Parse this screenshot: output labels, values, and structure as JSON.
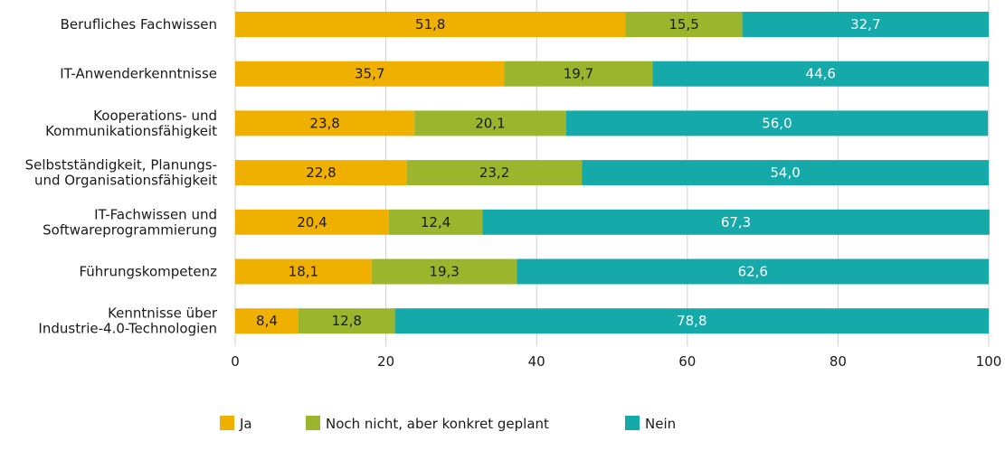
{
  "chart_data": {
    "type": "bar",
    "orientation": "horizontal",
    "stacked": true,
    "categories": [
      "Berufliches Fachwissen",
      "IT-Anwenderkenntnisse",
      "Kooperations- und Kommunikationsfähigkeit",
      "Selbstständigkeit, Planungs- und Organisationsfähigkeit",
      "IT-Fachwissen und Softwareprogrammierung",
      "Führungskompetenz",
      "Kenntnisse über Industrie-4.0-Technologien"
    ],
    "category_lines": [
      [
        "Berufliches Fachwissen"
      ],
      [
        "IT-Anwenderkenntnisse"
      ],
      [
        "Kooperations- und",
        "Kommunikationsfähigkeit"
      ],
      [
        "Selbstständigkeit, Planungs-",
        "und Organisationsfähigkeit"
      ],
      [
        "IT-Fachwissen und",
        "Softwareprogrammierung"
      ],
      [
        "Führungskompetenz"
      ],
      [
        "Kenntnisse über",
        "Industrie-4.0-Technologien"
      ]
    ],
    "series": [
      {
        "name": "Ja",
        "color": "#f0b000",
        "label_color": "#1a1a1a",
        "values": [
          51.8,
          35.7,
          23.8,
          22.8,
          20.4,
          18.1,
          8.4
        ],
        "labels": [
          "51,8",
          "35,7",
          "23,8",
          "22,8",
          "20,4",
          "18,1",
          "8,4"
        ]
      },
      {
        "name": "Noch nicht, aber konkret geplant",
        "color": "#9bb52d",
        "label_color": "#1a1a1a",
        "values": [
          15.5,
          19.7,
          20.1,
          23.2,
          12.4,
          19.3,
          12.8
        ],
        "labels": [
          "15,5",
          "19,7",
          "20,1",
          "23,2",
          "12,4",
          "19,3",
          "12,8"
        ]
      },
      {
        "name": "Nein",
        "color": "#16a9a9",
        "label_color": "#ffffff",
        "values": [
          32.7,
          44.6,
          56.0,
          54.0,
          67.3,
          62.6,
          78.8
        ],
        "labels": [
          "32,7",
          "44,6",
          "56,0",
          "54,0",
          "67,3",
          "62,6",
          "78,8"
        ]
      }
    ],
    "xlim": [
      0,
      100
    ],
    "x_ticks": [
      0,
      20,
      40,
      60,
      80,
      100
    ],
    "x_tick_labels": [
      "0",
      "20",
      "40",
      "60",
      "80",
      "100"
    ],
    "grid": true,
    "legend_position": "bottom",
    "title": "",
    "xlabel": "",
    "ylabel": ""
  }
}
